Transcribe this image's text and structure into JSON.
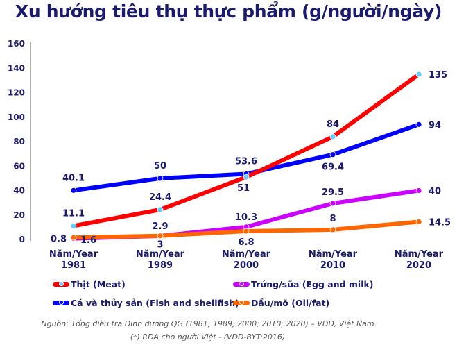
{
  "chart_data": {
    "type": "line",
    "title": "Xu hướng tiêu thụ thực phẩm (g/người/ngày)",
    "categories": [
      [
        "Năm/Year",
        "1981"
      ],
      [
        "Năm/Year",
        "1989"
      ],
      [
        "Năm/Year",
        "2000"
      ],
      [
        "Năm/Year",
        "2010"
      ],
      [
        "Năm/Year",
        "2020"
      ]
    ],
    "ylim": [
      0,
      160
    ],
    "yticks": [
      "0",
      "20",
      "40",
      "60",
      "80",
      "100",
      "120",
      "140",
      "160"
    ],
    "grid": false,
    "legend_position": "bottom",
    "series": [
      {
        "name": "Thịt (Meat)",
        "color": "#ff0000",
        "marker": "#66ccff",
        "values": [
          11.1,
          24.4,
          51,
          84,
          135
        ],
        "labels": [
          "11.1",
          "24.4",
          "51",
          "84",
          "135"
        ]
      },
      {
        "name": "Cá và thủy sản (Fish and shellfish)",
        "color": "#0000ff",
        "marker": "#0000ff",
        "values": [
          40.1,
          50,
          53.6,
          69.4,
          94
        ],
        "labels": [
          "40.1",
          "50",
          "53.6",
          "69.4",
          "94"
        ]
      },
      {
        "name": "Trứng/sữa (Egg and milk)",
        "color": "#cc00ff",
        "marker": "#cc00ff",
        "values": [
          0.8,
          2.9,
          10.3,
          29.5,
          40
        ],
        "labels": [
          "0.8",
          "2.9",
          "10.3",
          "29.5",
          "40"
        ]
      },
      {
        "name": "Dầu/mỡ (Oil/fat)",
        "color": "#ff6600",
        "marker": "#ff6600",
        "values": [
          1.6,
          3,
          6.8,
          8,
          14.5
        ],
        "labels": [
          "1.6",
          "3",
          "6.8",
          "8",
          "14.5"
        ]
      }
    ]
  },
  "footnotes": {
    "source": "Nguồn: Tổng điều tra Dinh dưỡng QG  (1981; 1989; 2000; 2010; 2020) – VDD, Việt Nam",
    "rda": "(*) RDA cho người Việt - (VDD-BYT:2016)"
  }
}
